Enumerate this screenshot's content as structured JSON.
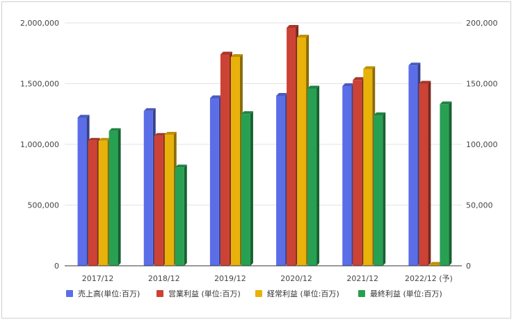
{
  "chart_data": {
    "type": "bar",
    "categories": [
      "2017/12",
      "2018/12",
      "2019/12",
      "2020/12",
      "2021/12",
      "2022/12 (予)"
    ],
    "series": [
      {
        "name": "売上高(単位:百万)",
        "axis": "left",
        "color": "#5b6ee8",
        "values": [
          1220000,
          1275000,
          1380000,
          1400000,
          1480000,
          1650000
        ]
      },
      {
        "name": "営業利益 (単位:百万)",
        "axis": "right",
        "color": "#cc4235",
        "values": [
          103000,
          107000,
          174000,
          196000,
          153000,
          150000
        ]
      },
      {
        "name": "経常利益 (単位:百万)",
        "axis": "right",
        "color": "#e8b20a",
        "values": [
          103000,
          108000,
          172000,
          188000,
          162000,
          0
        ]
      },
      {
        "name": "最終利益 (単位:百万)",
        "axis": "right",
        "color": "#27a052",
        "values": [
          111000,
          81000,
          125000,
          146000,
          124000,
          133000
        ]
      }
    ],
    "y_left": {
      "ylim": [
        0,
        2000000
      ],
      "ticks": [
        0,
        500000,
        1000000,
        1500000,
        2000000
      ],
      "tick_labels": [
        "0",
        "500,000",
        "1,000,000",
        "1,500,000",
        "2,000,000"
      ]
    },
    "y_right": {
      "ylim": [
        0,
        200000
      ],
      "ticks": [
        0,
        50000,
        100000,
        150000,
        200000
      ],
      "tick_labels": [
        "0",
        "50,000",
        "100,000",
        "150,000",
        "200,000"
      ]
    },
    "grid": true,
    "legend_position": "bottom",
    "style": "3d-bars"
  }
}
